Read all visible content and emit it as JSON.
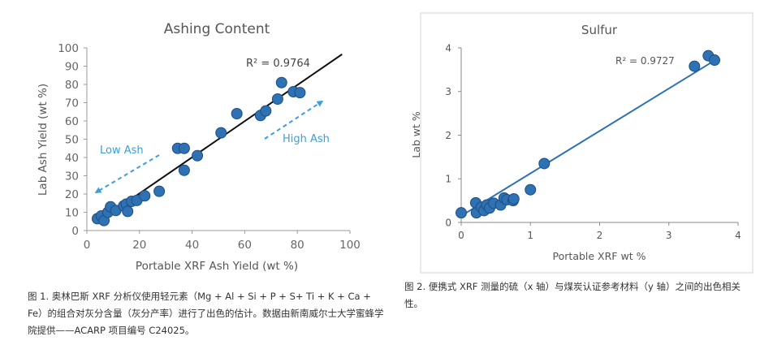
{
  "chart_data": [
    {
      "type": "scatter",
      "title": "Ashing Content",
      "xlabel": "Portable XRF Ash Yield (wt %)",
      "ylabel": "Lab Ash Yield (wt %)",
      "xlim": [
        0,
        100
      ],
      "ylim": [
        0,
        100
      ],
      "xticks": [
        "0",
        "20",
        "40",
        "60",
        "80",
        "100"
      ],
      "yticks": [
        "0",
        "10",
        "20",
        "30",
        "40",
        "50",
        "60",
        "70",
        "80",
        "90",
        "100"
      ],
      "grid": false,
      "r2_label": "R² = 0.9764",
      "annotations": [
        "Low Ash",
        "High Ash"
      ],
      "point_color": "#2f72b3",
      "line_color": "#111111",
      "arrow_color": "#3aa0d8",
      "trendline": {
        "x": [
          4,
          97
        ],
        "y": [
          4.5,
          96.5
        ]
      },
      "points": [
        {
          "x": 4,
          "y": 6.5
        },
        {
          "x": 5.5,
          "y": 8
        },
        {
          "x": 6.5,
          "y": 5.5
        },
        {
          "x": 8,
          "y": 10
        },
        {
          "x": 9,
          "y": 13
        },
        {
          "x": 11,
          "y": 11
        },
        {
          "x": 14,
          "y": 13.5
        },
        {
          "x": 15,
          "y": 14.5
        },
        {
          "x": 15.5,
          "y": 10.5
        },
        {
          "x": 17,
          "y": 16
        },
        {
          "x": 19,
          "y": 16.5
        },
        {
          "x": 22,
          "y": 19
        },
        {
          "x": 27.5,
          "y": 21.5
        },
        {
          "x": 34.5,
          "y": 45
        },
        {
          "x": 37,
          "y": 45
        },
        {
          "x": 37,
          "y": 33
        },
        {
          "x": 42,
          "y": 41
        },
        {
          "x": 51,
          "y": 53.5
        },
        {
          "x": 57,
          "y": 64
        },
        {
          "x": 66,
          "y": 63
        },
        {
          "x": 68,
          "y": 65.5
        },
        {
          "x": 72.5,
          "y": 72
        },
        {
          "x": 74,
          "y": 81
        },
        {
          "x": 78.5,
          "y": 76
        },
        {
          "x": 81,
          "y": 75.5
        }
      ]
    },
    {
      "type": "scatter",
      "title": "Sulfur",
      "xlabel": "Portable XRF wt %",
      "ylabel": "Lab wt %",
      "xlim": [
        0,
        4
      ],
      "ylim": [
        0,
        4
      ],
      "xticks": [
        "0",
        "1",
        "2",
        "3",
        "4"
      ],
      "yticks": [
        "0",
        "1",
        "2",
        "3",
        "4"
      ],
      "grid": false,
      "r2_label": "R² = 0.9727",
      "point_color": "#2f72b3",
      "line_color": "#2f72b3",
      "trendline": {
        "x": [
          0,
          3.7
        ],
        "y": [
          0.15,
          3.75
        ]
      },
      "points": [
        {
          "x": 0,
          "y": 0.22
        },
        {
          "x": 0.21,
          "y": 0.45
        },
        {
          "x": 0.22,
          "y": 0.22
        },
        {
          "x": 0.29,
          "y": 0.35
        },
        {
          "x": 0.33,
          "y": 0.27
        },
        {
          "x": 0.37,
          "y": 0.4
        },
        {
          "x": 0.41,
          "y": 0.33
        },
        {
          "x": 0.47,
          "y": 0.44
        },
        {
          "x": 0.57,
          "y": 0.4
        },
        {
          "x": 0.62,
          "y": 0.56
        },
        {
          "x": 0.66,
          "y": 0.52
        },
        {
          "x": 0.75,
          "y": 0.5
        },
        {
          "x": 0.76,
          "y": 0.54
        },
        {
          "x": 1.0,
          "y": 0.75
        },
        {
          "x": 1.2,
          "y": 1.35
        },
        {
          "x": 3.37,
          "y": 3.58
        },
        {
          "x": 3.57,
          "y": 3.82
        },
        {
          "x": 3.66,
          "y": 3.72
        }
      ]
    }
  ],
  "captions": {
    "fig1": "图 1. 奥林巴斯 XRF 分析仪使用轻元素（Mg + Al + Si + P + S+ Ti + K + Ca + Fe）的组合对灰分含量（灰分产率）进行了出色的估计。数据由新南威尔士大学蜜蜂学院提供——ACARP 项目编号 C24025。",
    "fig2": "图 2. 便携式 XRF 测量的硫（x 轴）与煤炭认证参考材料（y 轴）之间的出色相关性。"
  }
}
